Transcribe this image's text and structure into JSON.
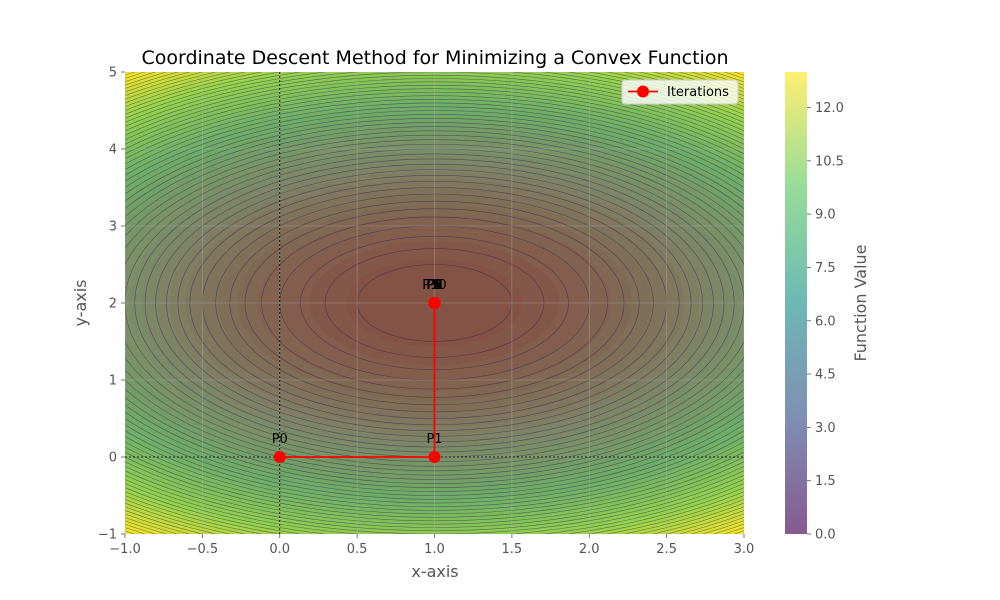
{
  "chart_data": {
    "type": "contour",
    "title": "Coordinate Descent Method for Minimizing a Convex Function",
    "xlabel": "x-axis",
    "ylabel": "y-axis",
    "xlim": [
      -1.0,
      3.0
    ],
    "ylim": [
      -1,
      5
    ],
    "xticks": [
      "−1.0",
      "−0.5",
      "0.0",
      "0.5",
      "1.0",
      "1.5",
      "2.0",
      "2.5",
      "3.0"
    ],
    "xtick_values": [
      -1.0,
      -0.5,
      0.0,
      0.5,
      1.0,
      1.5,
      2.0,
      2.5,
      3.0
    ],
    "yticks": [
      "−1",
      "0",
      "1",
      "2",
      "3",
      "4",
      "5"
    ],
    "ytick_values": [
      -1,
      0,
      1,
      2,
      3,
      4,
      5
    ],
    "function": {
      "center": [
        1,
        2
      ],
      "x_weight": 1,
      "y_weight": 1
    },
    "grid": true,
    "reference_lines": {
      "x": 0,
      "y": 0
    },
    "colormap": [
      "#440154",
      "#3b528b",
      "#21918c",
      "#5ec962",
      "#fde725"
    ],
    "colorbar": {
      "label": "Function Value",
      "ticks": [
        "0.0",
        "1.5",
        "3.0",
        "4.5",
        "6.0",
        "7.5",
        "9.0",
        "10.5",
        "12.0"
      ],
      "tick_values": [
        0.0,
        1.5,
        3.0,
        4.5,
        6.0,
        7.5,
        9.0,
        10.5,
        12.0
      ],
      "range": [
        0,
        13
      ]
    },
    "series": [
      {
        "name": "Iterations",
        "color": "#ff0000",
        "points": [
          {
            "label": "P0",
            "x": 0,
            "y": 0
          },
          {
            "label": "P1",
            "x": 1,
            "y": 0
          },
          {
            "label": "P2",
            "x": 1,
            "y": 2
          },
          {
            "label": "P3",
            "x": 1,
            "y": 2
          },
          {
            "label": "P4",
            "x": 1,
            "y": 2
          },
          {
            "label": "P5",
            "x": 1,
            "y": 2
          },
          {
            "label": "P6",
            "x": 1,
            "y": 2
          },
          {
            "label": "P7",
            "x": 1,
            "y": 2
          },
          {
            "label": "P8",
            "x": 1,
            "y": 2
          },
          {
            "label": "P9",
            "x": 1,
            "y": 2
          },
          {
            "label": "P10",
            "x": 1,
            "y": 2
          }
        ]
      }
    ],
    "legend": {
      "placement": "top-right",
      "entries": [
        "Iterations"
      ]
    }
  }
}
